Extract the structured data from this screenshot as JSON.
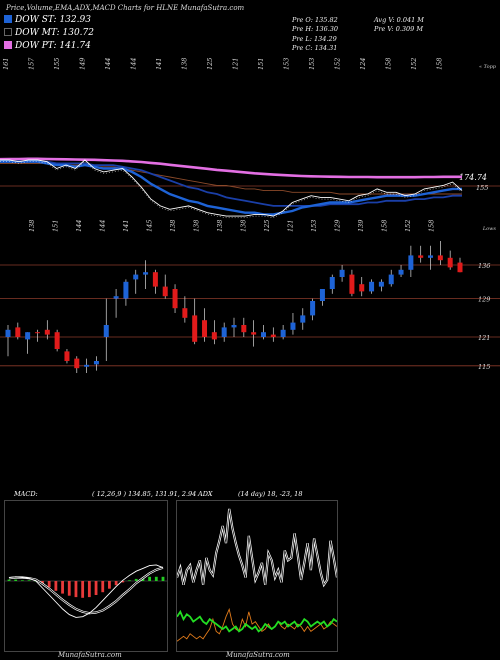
{
  "header": {
    "title": "Price,Volume,EMA,ADX,MACD Charts for HLNE MunafaSutra.com"
  },
  "legend": [
    {
      "label": "DOW ST: 132.93",
      "color": "#1e63d6"
    },
    {
      "label": "DOW MT: 130.72",
      "color": "#000000"
    },
    {
      "label": "DOW PT: 141.74",
      "color": "#e36fe3"
    }
  ],
  "stats": {
    "col1": [
      "Pre O: 135.82",
      "Pre H: 136.30",
      "Pre L: 134.29",
      "Pre C: 134.31"
    ],
    "col2": [
      "Avg V: 0.041 M",
      "Pre V: 0.309 M"
    ]
  },
  "colors": {
    "up": "#1e63d6",
    "down": "#e11b1b",
    "ema_long": "#e36fe3",
    "level": "#8b3a2a",
    "macd_hist": "#e83a3a",
    "macd_pos": "#22cc22",
    "adx_green": "#22dd22",
    "adx_orange": "#e07a1a"
  },
  "chart_data": [
    {
      "type": "line",
      "name": "ema-panel",
      "top_tick_labels": [
        "161",
        "157",
        "155",
        "149",
        "144",
        "144",
        "141",
        "138",
        "125",
        "121",
        "151",
        "153",
        "153",
        "152",
        "124",
        "158",
        "152",
        "158"
      ],
      "corner_label": "« Topp",
      "value_labels": [
        "174.74",
        "155"
      ],
      "series": [
        {
          "name": "price",
          "values": [
            163,
            163,
            162,
            163,
            163,
            162,
            158,
            160,
            158,
            163,
            158,
            156,
            157,
            158,
            153,
            147,
            140,
            136,
            134,
            135,
            136,
            134,
            132,
            131,
            130,
            130,
            130,
            131,
            131,
            130,
            133,
            138,
            140,
            142,
            141,
            141,
            140,
            139,
            142,
            143,
            146,
            144,
            144,
            142,
            143,
            146,
            147,
            148,
            150,
            145
          ]
        },
        {
          "name": "ema_short",
          "values": [
            162,
            162,
            162,
            162,
            162,
            161,
            160,
            160,
            159,
            160,
            159,
            158,
            158,
            158,
            156,
            153,
            149,
            146,
            143,
            141,
            139,
            138,
            136,
            135,
            134,
            133,
            132,
            132,
            131,
            131,
            132,
            133,
            135,
            136,
            137,
            138,
            138,
            138,
            139,
            140,
            141,
            142,
            142,
            142,
            142,
            143,
            144,
            145,
            146,
            146
          ]
        },
        {
          "name": "ema_mid",
          "values": [
            162,
            162,
            162,
            162,
            162,
            162,
            161,
            161,
            161,
            161,
            160,
            160,
            160,
            159,
            158,
            157,
            155,
            153,
            151,
            149,
            147,
            146,
            144,
            143,
            141,
            140,
            139,
            138,
            137,
            136,
            136,
            136,
            136,
            136,
            136,
            137,
            137,
            137,
            137,
            138,
            138,
            139,
            139,
            139,
            140,
            140,
            141,
            141,
            142,
            142
          ]
        },
        {
          "name": "ema_long",
          "values": [
            163.5,
            163.6,
            163.6,
            163.7,
            163.7,
            163.6,
            163.5,
            163.4,
            163.3,
            163.2,
            163.1,
            162.9,
            162.7,
            162.5,
            162.2,
            161.8,
            161.3,
            160.8,
            160.2,
            159.6,
            159.0,
            158.4,
            157.8,
            157.2,
            156.7,
            156.2,
            155.7,
            155.2,
            154.8,
            154.4,
            154.1,
            153.8,
            153.6,
            153.4,
            153.3,
            153.2,
            153.1,
            153.0,
            153.0,
            153.0,
            152.9,
            152.9,
            152.9,
            152.9,
            152.9,
            153.0,
            153.0,
            153.1,
            153.1,
            153.1
          ]
        },
        {
          "name": "ema_brown",
          "values": [
            161,
            161,
            161,
            161,
            161,
            161,
            160,
            160,
            160,
            160,
            159,
            159,
            159,
            158,
            157,
            156,
            155,
            154,
            153,
            152,
            151,
            150,
            149,
            148,
            148,
            147,
            146,
            146,
            145,
            145,
            145,
            144,
            144,
            144,
            144,
            144,
            143,
            143,
            143,
            143,
            143,
            143,
            143,
            143,
            143,
            143,
            143,
            143,
            143,
            143
          ]
        }
      ]
    },
    {
      "type": "candlestick",
      "name": "price-panel",
      "corner_label": "Lows",
      "top_tick_labels": [
        "138",
        "151",
        "144",
        "144",
        "141",
        "145",
        "138",
        "138",
        "138",
        "138",
        "125",
        "121",
        "153",
        "129",
        "139",
        "158",
        "152",
        "158"
      ],
      "levels": [
        {
          "label": "136",
          "value": 136
        },
        {
          "label": "129",
          "value": 129
        },
        {
          "label": "121",
          "value": 121
        },
        {
          "label": "115",
          "value": 115
        }
      ],
      "candles": [
        {
          "o": 121.0,
          "h": 123.5,
          "l": 117.0,
          "c": 122.5
        },
        {
          "o": 123.0,
          "h": 124.0,
          "l": 120.5,
          "c": 121.0
        },
        {
          "o": 120.5,
          "h": 122.0,
          "l": 117.5,
          "c": 122.0
        },
        {
          "o": 122.0,
          "h": 122.5,
          "l": 120.0,
          "c": 121.8
        },
        {
          "o": 122.5,
          "h": 124.5,
          "l": 120.5,
          "c": 121.5
        },
        {
          "o": 122.0,
          "h": 122.5,
          "l": 118.0,
          "c": 118.5
        },
        {
          "o": 118.0,
          "h": 118.5,
          "l": 115.5,
          "c": 116.0
        },
        {
          "o": 116.5,
          "h": 117.0,
          "l": 113.5,
          "c": 114.5
        },
        {
          "o": 114.8,
          "h": 116.5,
          "l": 113.5,
          "c": 115.2
        },
        {
          "o": 115.3,
          "h": 117.0,
          "l": 114.0,
          "c": 116.0
        },
        {
          "o": 121.0,
          "h": 129.0,
          "l": 116.0,
          "c": 123.5
        },
        {
          "o": 129.0,
          "h": 131.0,
          "l": 125.0,
          "c": 129.5
        },
        {
          "o": 129.0,
          "h": 133.0,
          "l": 127.5,
          "c": 132.5
        },
        {
          "o": 133.0,
          "h": 135.0,
          "l": 130.0,
          "c": 134.0
        },
        {
          "o": 134.0,
          "h": 137.0,
          "l": 131.0,
          "c": 134.5
        },
        {
          "o": 134.5,
          "h": 135.0,
          "l": 130.0,
          "c": 131.5
        },
        {
          "o": 131.5,
          "h": 134.0,
          "l": 129.0,
          "c": 129.5
        },
        {
          "o": 131.0,
          "h": 132.0,
          "l": 126.0,
          "c": 127.0
        },
        {
          "o": 127.0,
          "h": 129.5,
          "l": 124.0,
          "c": 125.0
        },
        {
          "o": 125.5,
          "h": 129.0,
          "l": 119.5,
          "c": 120.0
        },
        {
          "o": 124.5,
          "h": 127.0,
          "l": 120.0,
          "c": 121.0
        },
        {
          "o": 122.0,
          "h": 124.5,
          "l": 119.5,
          "c": 120.5
        },
        {
          "o": 121.0,
          "h": 124.0,
          "l": 120.0,
          "c": 123.0
        },
        {
          "o": 123.0,
          "h": 125.0,
          "l": 121.0,
          "c": 123.5
        },
        {
          "o": 123.5,
          "h": 125.0,
          "l": 121.0,
          "c": 122.0
        },
        {
          "o": 122.0,
          "h": 124.5,
          "l": 119.0,
          "c": 121.5
        },
        {
          "o": 121.0,
          "h": 123.5,
          "l": 120.5,
          "c": 122.0
        },
        {
          "o": 121.5,
          "h": 123.0,
          "l": 120.0,
          "c": 121.0
        },
        {
          "o": 121.0,
          "h": 123.5,
          "l": 120.5,
          "c": 122.5
        },
        {
          "o": 122.5,
          "h": 126.0,
          "l": 121.5,
          "c": 124.0
        },
        {
          "o": 124.0,
          "h": 127.0,
          "l": 122.5,
          "c": 125.5
        },
        {
          "o": 125.5,
          "h": 129.0,
          "l": 124.5,
          "c": 128.5
        },
        {
          "o": 128.5,
          "h": 131.0,
          "l": 127.5,
          "c": 131.0
        },
        {
          "o": 131.0,
          "h": 134.0,
          "l": 130.0,
          "c": 133.5
        },
        {
          "o": 133.5,
          "h": 136.0,
          "l": 132.5,
          "c": 135.0
        },
        {
          "o": 134.0,
          "h": 135.0,
          "l": 129.5,
          "c": 130.0
        },
        {
          "o": 132.0,
          "h": 133.5,
          "l": 129.5,
          "c": 130.5
        },
        {
          "o": 130.5,
          "h": 133.0,
          "l": 130.0,
          "c": 132.5
        },
        {
          "o": 131.5,
          "h": 133.0,
          "l": 130.5,
          "c": 132.5
        },
        {
          "o": 132.0,
          "h": 135.0,
          "l": 131.5,
          "c": 134.0
        },
        {
          "o": 134.0,
          "h": 136.0,
          "l": 133.5,
          "c": 135.0
        },
        {
          "o": 135.0,
          "h": 140.0,
          "l": 133.5,
          "c": 138.0
        },
        {
          "o": 138.0,
          "h": 140.0,
          "l": 136.5,
          "c": 137.5
        },
        {
          "o": 137.5,
          "h": 140.0,
          "l": 135.0,
          "c": 138.0
        },
        {
          "o": 138.0,
          "h": 141.0,
          "l": 136.0,
          "c": 137.0
        },
        {
          "o": 137.5,
          "h": 139.0,
          "l": 135.0,
          "c": 135.5
        },
        {
          "o": 136.5,
          "h": 137.5,
          "l": 134.5,
          "c": 134.5
        }
      ]
    },
    {
      "type": "line",
      "name": "macd-panel",
      "label": "MACD:",
      "params": "( 12,26,9 ) 134.85, 131.91, 2.94",
      "histogram": [
        0.2,
        0.2,
        0.1,
        0.1,
        0,
        -0.4,
        -0.9,
        -1.4,
        -1.8,
        -2.1,
        -2.3,
        -2.4,
        -2.3,
        -2.0,
        -1.6,
        -1.1,
        -0.6,
        -0.2,
        0.1,
        0.3,
        0.5,
        0.6,
        0.6,
        0.6
      ],
      "series": [
        {
          "name": "macd",
          "values": [
            0.5,
            0.6,
            0.5,
            0.4,
            0,
            -1.0,
            -2.0,
            -3.0,
            -4.0,
            -4.8,
            -5.2,
            -5.1,
            -4.6,
            -3.8,
            -2.8,
            -1.8,
            -0.8,
            0.1,
            0.8,
            1.4,
            1.8,
            2.2,
            2.3,
            1.9
          ]
        },
        {
          "name": "signal",
          "values": [
            0.4,
            0.5,
            0.5,
            0.4,
            0.2,
            -0.4,
            -1.1,
            -1.9,
            -2.7,
            -3.4,
            -4.0,
            -4.4,
            -4.6,
            -4.5,
            -4.2,
            -3.6,
            -2.9,
            -2.0,
            -1.2,
            -0.3,
            0.4,
            1.1,
            1.6,
            1.9
          ]
        }
      ]
    },
    {
      "type": "line",
      "name": "adx-panel",
      "label": "ADX",
      "params": "(14 day) 18, -23, 18",
      "series": [
        {
          "name": "dx",
          "values": [
            30,
            34,
            27,
            33,
            35,
            28,
            33,
            37,
            27,
            38,
            33,
            31,
            40,
            45,
            51,
            44,
            58,
            50,
            44,
            39,
            35,
            30,
            47,
            38,
            29,
            32,
            36,
            27,
            40,
            37,
            30,
            33,
            28,
            41,
            37,
            38,
            48,
            39,
            29,
            36,
            44,
            33,
            46,
            39,
            32,
            27,
            29,
            45,
            38,
            30
          ]
        },
        {
          "name": "plus_di",
          "values": [
            14,
            16,
            13,
            15,
            14,
            12,
            13,
            14,
            12,
            11,
            13,
            12,
            11,
            10,
            9,
            10,
            8,
            9,
            10,
            8,
            9,
            11,
            10,
            9,
            10,
            8,
            9,
            11,
            10,
            9,
            10,
            12,
            11,
            12,
            10,
            11,
            12,
            10,
            11,
            13,
            12,
            10,
            11,
            12,
            11,
            12,
            10,
            11,
            13,
            12
          ]
        },
        {
          "name": "minus_di",
          "values": [
            4,
            5,
            6,
            5,
            7,
            6,
            5,
            6,
            5,
            7,
            9,
            13,
            8,
            7,
            10,
            14,
            17,
            11,
            9,
            8,
            13,
            10,
            16,
            11,
            12,
            10,
            8,
            9,
            11,
            9,
            10,
            12,
            10,
            9,
            11,
            10,
            9,
            11,
            10,
            8,
            10,
            8,
            9,
            10,
            11,
            9,
            10,
            12,
            11,
            10
          ]
        }
      ]
    }
  ],
  "footer": {
    "brand_left": "MunafaSutra.com",
    "brand_right": "MunafaSutra.com"
  }
}
